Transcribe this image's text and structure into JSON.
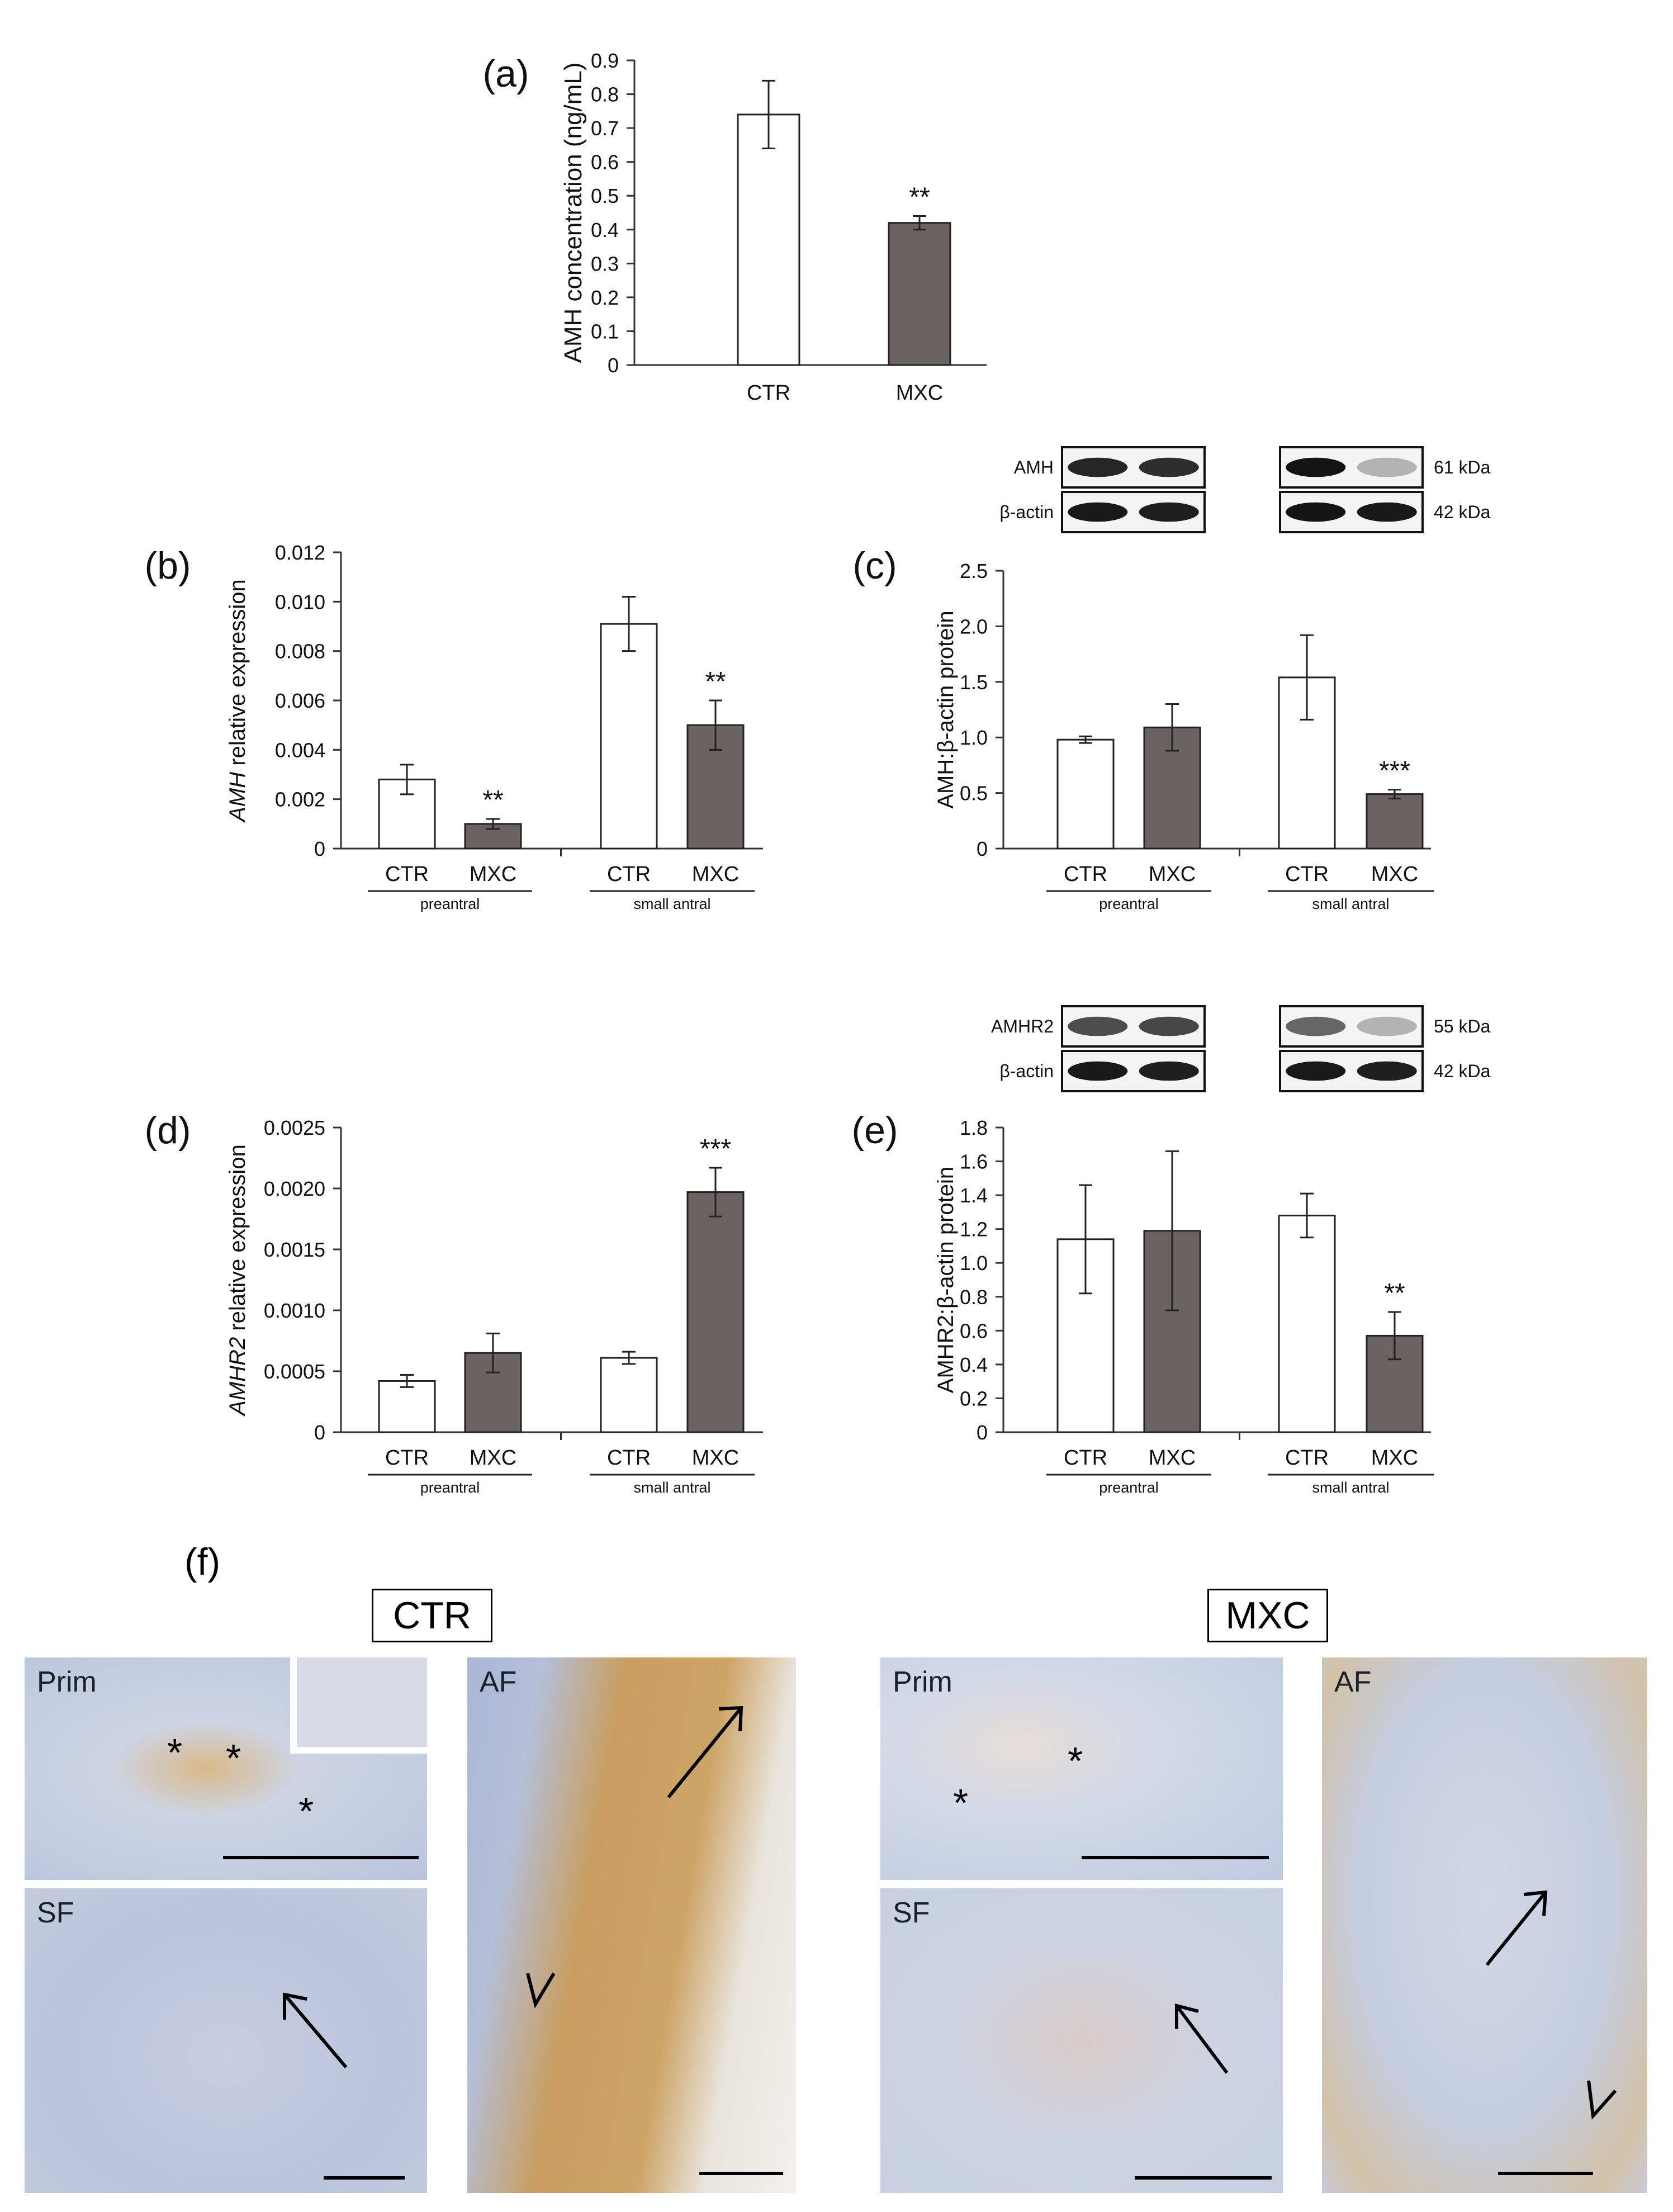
{
  "chart_data": [
    {
      "panel": "(a)",
      "type": "bar",
      "categories": [
        "CTR",
        "MXC"
      ],
      "values": [
        0.74,
        0.42
      ],
      "errors": [
        0.1,
        0.02
      ],
      "significance": [
        "",
        "**"
      ],
      "ylabel": "AMH concentration (ng/mL)",
      "ylim": [
        0,
        0.9
      ],
      "yticks": [
        "0",
        "0.1",
        "0.2",
        "0.3",
        "0.4",
        "0.5",
        "0.6",
        "0.7",
        "0.8",
        "0.9"
      ]
    },
    {
      "panel": "(b)",
      "type": "bar",
      "groups": [
        "preantral",
        "small antral"
      ],
      "categories": [
        "CTR",
        "MXC",
        "CTR",
        "MXC"
      ],
      "values": [
        0.0028,
        0.001,
        0.0091,
        0.005
      ],
      "errors": [
        0.0006,
        0.0002,
        0.0011,
        0.001
      ],
      "significance": [
        "",
        "**",
        "",
        "**"
      ],
      "ylabel_italic": "AMH",
      "ylabel": " relative expression",
      "ylim": [
        0,
        0.012
      ],
      "yticks": [
        "0",
        "0.002",
        "0.004",
        "0.006",
        "0.008",
        "0.010",
        "0.012"
      ]
    },
    {
      "panel": "(c)",
      "type": "bar",
      "groups": [
        "preantral",
        "small antral"
      ],
      "categories": [
        "CTR",
        "MXC",
        "CTR",
        "MXC"
      ],
      "values": [
        0.98,
        1.09,
        1.54,
        0.49
      ],
      "errors": [
        0.03,
        0.21,
        0.38,
        0.04
      ],
      "significance": [
        "",
        "",
        "",
        "***"
      ],
      "ylabel": "AMH:β-actin protein",
      "ylim": [
        0,
        2.5
      ],
      "yticks": [
        "0",
        "0.5",
        "1.0",
        "1.5",
        "2.0",
        "2.5"
      ],
      "blot_rows": [
        {
          "name": "AMH",
          "size": "61 kDa",
          "intensity": [
            0.85,
            0.82,
            0.92,
            0.3
          ]
        },
        {
          "name": "β-actin",
          "size": "42 kDa",
          "intensity": [
            0.9,
            0.88,
            0.92,
            0.9
          ]
        }
      ]
    },
    {
      "panel": "(d)",
      "type": "bar",
      "groups": [
        "preantral",
        "small antral"
      ],
      "categories": [
        "CTR",
        "MXC",
        "CTR",
        "MXC"
      ],
      "values": [
        0.00042,
        0.00065,
        0.00061,
        0.00197
      ],
      "errors": [
        5e-05,
        0.00016,
        5e-05,
        0.0002
      ],
      "significance": [
        "",
        "",
        "",
        "***"
      ],
      "ylabel_italic": "AMHR2",
      "ylabel": " relative expression",
      "ylim": [
        0,
        0.0025
      ],
      "yticks": [
        "0",
        "0.0005",
        "0.0010",
        "0.0015",
        "0.0020",
        "0.0025"
      ]
    },
    {
      "panel": "(e)",
      "type": "bar",
      "groups": [
        "preantral",
        "small antral"
      ],
      "categories": [
        "CTR",
        "MXC",
        "CTR",
        "MXC"
      ],
      "values": [
        1.14,
        1.19,
        1.28,
        0.57
      ],
      "errors": [
        0.32,
        0.47,
        0.13,
        0.14
      ],
      "significance": [
        "",
        "",
        "",
        "**"
      ],
      "ylabel": "AMHR2:β-actin protein",
      "ylim": [
        0,
        1.8
      ],
      "yticks": [
        "0",
        "0.2",
        "0.4",
        "0.6",
        "0.8",
        "1.0",
        "1.2",
        "1.4",
        "1.6",
        "1.8"
      ],
      "blot_rows": [
        {
          "name": "AMHR2",
          "size": "55 kDa",
          "intensity": [
            0.7,
            0.72,
            0.6,
            0.3
          ]
        },
        {
          "name": "β-actin",
          "size": "42 kDa",
          "intensity": [
            0.9,
            0.88,
            0.9,
            0.88
          ]
        }
      ]
    }
  ],
  "panel_f": {
    "label": "(f)",
    "groups": [
      "CTR",
      "MXC"
    ],
    "images": [
      "Prim",
      "SF",
      "AF",
      "Prim",
      "SF",
      "AF"
    ],
    "colors": {
      "bar_open": "#ffffff",
      "bar_filled": "#6b6361",
      "tissue_blue": "#b8c6dc",
      "stain_brown": "#c79a5e"
    }
  }
}
